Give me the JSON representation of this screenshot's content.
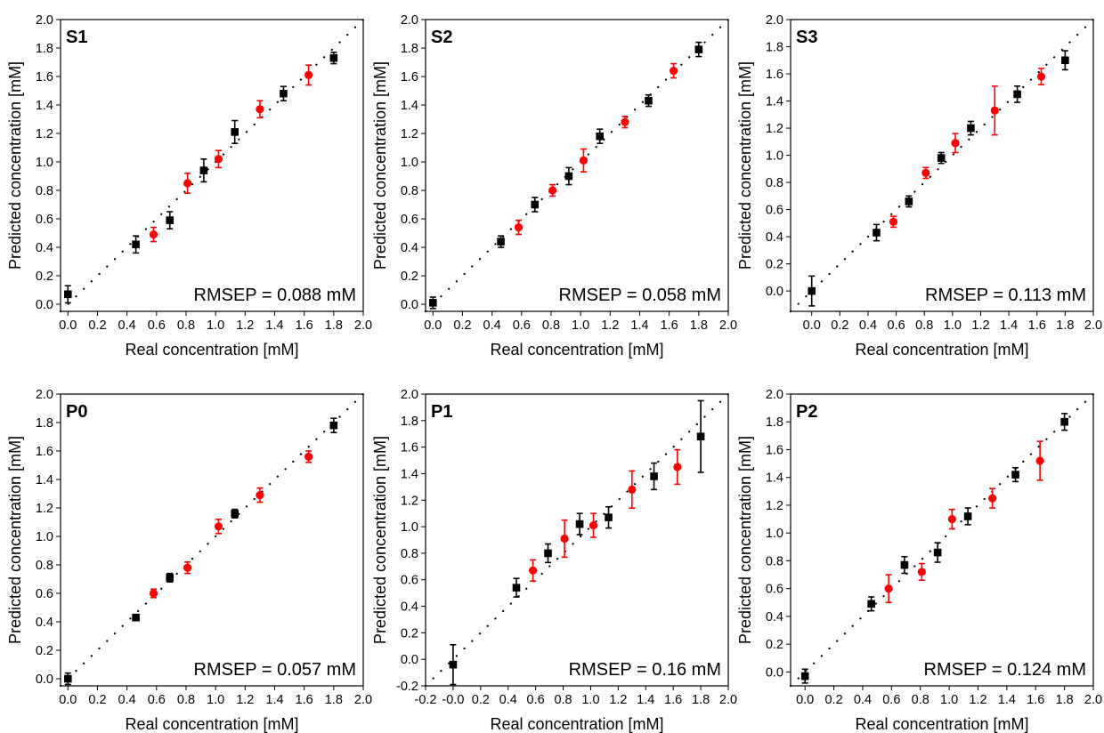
{
  "figure": {
    "colors": {
      "black_series": "#000000",
      "red_series": "#ff0000",
      "frame": "#000000",
      "ideal_line": "#000000"
    }
  },
  "chart_data": [
    {
      "type": "scatter",
      "panel_label": "S1",
      "xlabel": "Real concentration [mM]",
      "ylabel": "Predicted concentration [mM]",
      "xlim": [
        -0.05,
        2.0
      ],
      "ylim": [
        -0.05,
        2.0
      ],
      "x_ticks": [
        "0.0",
        "0.2",
        "0.4",
        "0.6",
        "0.8",
        "1.0",
        "1.2",
        "1.4",
        "1.6",
        "1.8",
        "2.0"
      ],
      "y_ticks": [
        "0.0",
        "0.2",
        "0.4",
        "0.6",
        "0.8",
        "1.0",
        "1.2",
        "1.4",
        "1.6",
        "1.8",
        "2.0"
      ],
      "annotation": "RMSEP = 0.088 mM",
      "ideal_line": true,
      "grid": false,
      "series": [
        {
          "marker": "square",
          "color": "#000000",
          "points": [
            {
              "x": 0.0,
              "y": 0.07,
              "err": 0.06
            },
            {
              "x": 0.46,
              "y": 0.42,
              "err": 0.06
            },
            {
              "x": 0.69,
              "y": 0.59,
              "err": 0.06
            },
            {
              "x": 0.92,
              "y": 0.94,
              "err": 0.08
            },
            {
              "x": 1.13,
              "y": 1.21,
              "err": 0.08
            },
            {
              "x": 1.46,
              "y": 1.48,
              "err": 0.05
            },
            {
              "x": 1.8,
              "y": 1.73,
              "err": 0.04
            }
          ]
        },
        {
          "marker": "circle",
          "color": "#ff0000",
          "points": [
            {
              "x": 0.58,
              "y": 0.49,
              "err": 0.05
            },
            {
              "x": 0.81,
              "y": 0.85,
              "err": 0.07
            },
            {
              "x": 1.02,
              "y": 1.02,
              "err": 0.06
            },
            {
              "x": 1.3,
              "y": 1.37,
              "err": 0.06
            },
            {
              "x": 1.63,
              "y": 1.61,
              "err": 0.07
            }
          ]
        }
      ]
    },
    {
      "type": "scatter",
      "panel_label": "S2",
      "xlabel": "Real concentration [mM]",
      "ylabel": "Predicted concentration [mM]",
      "xlim": [
        -0.05,
        2.0
      ],
      "ylim": [
        -0.05,
        2.0
      ],
      "x_ticks": [
        "0.0",
        "0.2",
        "0.4",
        "0.6",
        "0.8",
        "1.0",
        "1.2",
        "1.4",
        "1.6",
        "1.8",
        "2.0"
      ],
      "y_ticks": [
        "0.0",
        "0.2",
        "0.4",
        "0.6",
        "0.8",
        "1.0",
        "1.2",
        "1.4",
        "1.6",
        "1.8",
        "2.0"
      ],
      "annotation": "RMSEP = 0.058 mM",
      "ideal_line": true,
      "grid": false,
      "series": [
        {
          "marker": "square",
          "color": "#000000",
          "points": [
            {
              "x": 0.0,
              "y": 0.01,
              "err": 0.04
            },
            {
              "x": 0.46,
              "y": 0.44,
              "err": 0.04
            },
            {
              "x": 0.69,
              "y": 0.7,
              "err": 0.05
            },
            {
              "x": 0.92,
              "y": 0.9,
              "err": 0.06
            },
            {
              "x": 1.13,
              "y": 1.18,
              "err": 0.05
            },
            {
              "x": 1.46,
              "y": 1.43,
              "err": 0.04
            },
            {
              "x": 1.8,
              "y": 1.79,
              "err": 0.05
            }
          ]
        },
        {
          "marker": "circle",
          "color": "#ff0000",
          "points": [
            {
              "x": 0.58,
              "y": 0.54,
              "err": 0.05
            },
            {
              "x": 0.81,
              "y": 0.8,
              "err": 0.04
            },
            {
              "x": 1.02,
              "y": 1.01,
              "err": 0.08
            },
            {
              "x": 1.3,
              "y": 1.28,
              "err": 0.04
            },
            {
              "x": 1.63,
              "y": 1.64,
              "err": 0.05
            }
          ]
        }
      ]
    },
    {
      "type": "scatter",
      "panel_label": "S3",
      "xlabel": "Real concentration [mM]",
      "ylabel": "Predicted concentration [mM]",
      "xlim": [
        -0.15,
        2.0
      ],
      "ylim": [
        -0.15,
        2.0
      ],
      "x_ticks": [
        "0.0",
        "0.2",
        "0.4",
        "0.6",
        "0.8",
        "1.0",
        "1.2",
        "1.4",
        "1.6",
        "1.8",
        "2.0"
      ],
      "y_ticks": [
        "0.0",
        "0.2",
        "0.4",
        "0.6",
        "0.8",
        "1.0",
        "1.2",
        "1.4",
        "1.6",
        "1.8",
        "2.0"
      ],
      "annotation": "RMSEP = 0.113 mM",
      "ideal_line": true,
      "grid": false,
      "series": [
        {
          "marker": "square",
          "color": "#000000",
          "points": [
            {
              "x": 0.0,
              "y": 0.0,
              "err": 0.11
            },
            {
              "x": 0.46,
              "y": 0.43,
              "err": 0.06
            },
            {
              "x": 0.69,
              "y": 0.66,
              "err": 0.04
            },
            {
              "x": 0.92,
              "y": 0.98,
              "err": 0.04
            },
            {
              "x": 1.13,
              "y": 1.2,
              "err": 0.05
            },
            {
              "x": 1.46,
              "y": 1.45,
              "err": 0.06
            },
            {
              "x": 1.8,
              "y": 1.7,
              "err": 0.07
            }
          ]
        },
        {
          "marker": "circle",
          "color": "#ff0000",
          "points": [
            {
              "x": 0.58,
              "y": 0.51,
              "err": 0.04
            },
            {
              "x": 0.81,
              "y": 0.87,
              "err": 0.04
            },
            {
              "x": 1.02,
              "y": 1.09,
              "err": 0.07
            },
            {
              "x": 1.3,
              "y": 1.33,
              "err": 0.18
            },
            {
              "x": 1.63,
              "y": 1.58,
              "err": 0.06
            }
          ]
        }
      ]
    },
    {
      "type": "scatter",
      "panel_label": "P0",
      "xlabel": "Real concentration [mM]",
      "ylabel": "Predicted concentration [mM]",
      "xlim": [
        -0.05,
        2.0
      ],
      "ylim": [
        -0.05,
        2.0
      ],
      "x_ticks": [
        "0.0",
        "0.2",
        "0.4",
        "0.6",
        "0.8",
        "1.0",
        "1.2",
        "1.4",
        "1.6",
        "1.8",
        "2.0"
      ],
      "y_ticks": [
        "0.0",
        "0.2",
        "0.4",
        "0.6",
        "0.8",
        "1.0",
        "1.2",
        "1.4",
        "1.6",
        "1.8",
        "2.0"
      ],
      "annotation": "RMSEP = 0.057 mM",
      "ideal_line": true,
      "grid": false,
      "series": [
        {
          "marker": "square",
          "color": "#000000",
          "points": [
            {
              "x": 0.0,
              "y": 0.0,
              "err": 0.04
            },
            {
              "x": 0.46,
              "y": 0.43,
              "err": 0.02
            },
            {
              "x": 0.69,
              "y": 0.71,
              "err": 0.03
            },
            {
              "x": 1.13,
              "y": 1.16,
              "err": 0.03
            },
            {
              "x": 1.8,
              "y": 1.78,
              "err": 0.05
            }
          ]
        },
        {
          "marker": "circle",
          "color": "#ff0000",
          "points": [
            {
              "x": 0.58,
              "y": 0.6,
              "err": 0.03
            },
            {
              "x": 0.81,
              "y": 0.78,
              "err": 0.04
            },
            {
              "x": 1.02,
              "y": 1.07,
              "err": 0.05
            },
            {
              "x": 1.3,
              "y": 1.29,
              "err": 0.05
            },
            {
              "x": 1.63,
              "y": 1.56,
              "err": 0.04
            }
          ]
        }
      ]
    },
    {
      "type": "scatter",
      "panel_label": "P1",
      "xlabel": "Real concentration [mM]",
      "ylabel": "Predicted concentration [mM]",
      "xlim": [
        -0.2,
        2.0
      ],
      "ylim": [
        -0.2,
        2.0
      ],
      "x_ticks": [
        "-0.2",
        "-0.0",
        "0.2",
        "0.4",
        "0.6",
        "0.8",
        "1.0",
        "1.2",
        "1.4",
        "1.6",
        "1.8",
        "2.0"
      ],
      "y_ticks": [
        "-0.2",
        "0.0",
        "0.2",
        "0.4",
        "0.6",
        "0.8",
        "1.0",
        "1.2",
        "1.4",
        "1.6",
        "1.8",
        "2.0"
      ],
      "annotation": "RMSEP = 0.16 mM",
      "ideal_line": true,
      "grid": false,
      "series": [
        {
          "marker": "square",
          "color": "#000000",
          "points": [
            {
              "x": 0.0,
              "y": -0.04,
              "err": 0.15
            },
            {
              "x": 0.46,
              "y": 0.54,
              "err": 0.07
            },
            {
              "x": 0.69,
              "y": 0.8,
              "err": 0.07
            },
            {
              "x": 0.92,
              "y": 1.02,
              "err": 0.08
            },
            {
              "x": 1.13,
              "y": 1.07,
              "err": 0.08
            },
            {
              "x": 1.46,
              "y": 1.38,
              "err": 0.1
            },
            {
              "x": 1.8,
              "y": 1.68,
              "err": 0.27
            }
          ]
        },
        {
          "marker": "circle",
          "color": "#ff0000",
          "points": [
            {
              "x": 0.58,
              "y": 0.67,
              "err": 0.08
            },
            {
              "x": 0.81,
              "y": 0.91,
              "err": 0.14
            },
            {
              "x": 1.02,
              "y": 1.01,
              "err": 0.09
            },
            {
              "x": 1.3,
              "y": 1.28,
              "err": 0.14
            },
            {
              "x": 1.63,
              "y": 1.45,
              "err": 0.13
            }
          ]
        }
      ]
    },
    {
      "type": "scatter",
      "panel_label": "P2",
      "xlabel": "Real concentration [mM]",
      "ylabel": "Predicted concentration [mM]",
      "xlim": [
        -0.1,
        2.0
      ],
      "ylim": [
        -0.1,
        2.0
      ],
      "x_ticks": [
        "0.0",
        "0.2",
        "0.4",
        "0.6",
        "0.8",
        "1.0",
        "1.2",
        "1.4",
        "1.6",
        "1.8",
        "2.0"
      ],
      "y_ticks": [
        "0.0",
        "0.2",
        "0.4",
        "0.6",
        "0.8",
        "1.0",
        "1.2",
        "1.4",
        "1.6",
        "1.8",
        "2.0"
      ],
      "annotation": "RMSEP = 0.124 mM",
      "ideal_line": true,
      "grid": false,
      "series": [
        {
          "marker": "square",
          "color": "#000000",
          "points": [
            {
              "x": 0.0,
              "y": -0.03,
              "err": 0.05
            },
            {
              "x": 0.46,
              "y": 0.49,
              "err": 0.05
            },
            {
              "x": 0.69,
              "y": 0.77,
              "err": 0.06
            },
            {
              "x": 0.92,
              "y": 0.86,
              "err": 0.07
            },
            {
              "x": 1.13,
              "y": 1.12,
              "err": 0.06
            },
            {
              "x": 1.46,
              "y": 1.42,
              "err": 0.05
            },
            {
              "x": 1.8,
              "y": 1.8,
              "err": 0.06
            }
          ]
        },
        {
          "marker": "circle",
          "color": "#ff0000",
          "points": [
            {
              "x": 0.58,
              "y": 0.6,
              "err": 0.1
            },
            {
              "x": 0.81,
              "y": 0.72,
              "err": 0.06
            },
            {
              "x": 1.02,
              "y": 1.1,
              "err": 0.07
            },
            {
              "x": 1.3,
              "y": 1.25,
              "err": 0.07
            },
            {
              "x": 1.63,
              "y": 1.52,
              "err": 0.14
            }
          ]
        }
      ]
    }
  ]
}
